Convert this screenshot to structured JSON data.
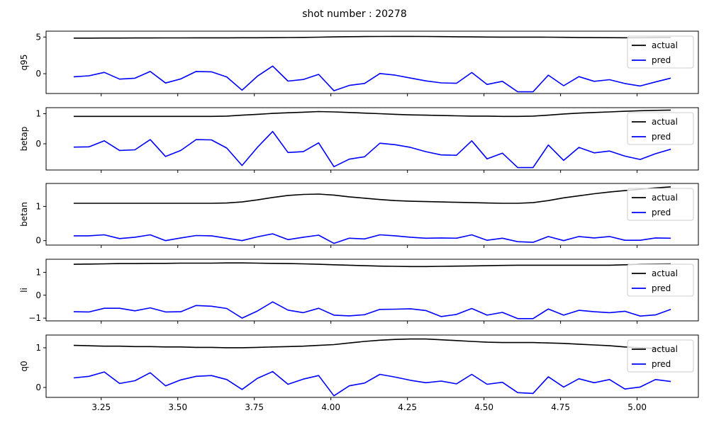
{
  "figure": {
    "title": "shot number : 20278"
  },
  "chart_data": {
    "type": "line",
    "title": "shot number : 20278",
    "x": [
      3.16,
      3.21,
      3.26,
      3.31,
      3.36,
      3.41,
      3.46,
      3.51,
      3.56,
      3.61,
      3.66,
      3.71,
      3.76,
      3.81,
      3.86,
      3.91,
      3.96,
      4.01,
      4.06,
      4.11,
      4.16,
      4.21,
      4.26,
      4.31,
      4.36,
      4.41,
      4.46,
      4.51,
      4.56,
      4.61,
      4.66,
      4.71,
      4.76,
      4.81,
      4.86,
      4.91,
      4.96,
      5.01,
      5.06,
      5.11
    ],
    "xlim": [
      3.07,
      5.2
    ],
    "xticks": [
      3.25,
      3.5,
      3.75,
      4.0,
      4.25,
      4.5,
      4.75,
      5.0
    ],
    "xtick_labels": [
      "3.25",
      "3.50",
      "3.75",
      "4.00",
      "4.25",
      "4.50",
      "4.75",
      "5.00"
    ],
    "legend": [
      "actual",
      "pred"
    ],
    "legend_position": "upper right",
    "colors": {
      "actual": "#000000",
      "pred": "#0000ff"
    },
    "subplots": [
      {
        "ylabel": "q95",
        "ylim": [
          -2.7,
          5.8
        ],
        "yticks": [
          0,
          5
        ],
        "ytick_labels": [
          "0",
          "5"
        ],
        "series": [
          {
            "name": "actual",
            "values": [
              4.85,
              4.85,
              4.86,
              4.86,
              4.87,
              4.87,
              4.88,
              4.88,
              4.89,
              4.89,
              4.89,
              4.9,
              4.9,
              4.91,
              4.93,
              4.95,
              4.98,
              5.02,
              5.05,
              5.07,
              5.08,
              5.09,
              5.09,
              5.08,
              5.06,
              5.04,
              5.02,
              5.0,
              4.99,
              4.99,
              4.99,
              4.98,
              4.96,
              4.94,
              4.92,
              4.91,
              4.9,
              4.9,
              4.92,
              4.94
            ]
          },
          {
            "name": "pred",
            "values": [
              -0.42,
              -0.29,
              0.18,
              -0.74,
              -0.61,
              0.3,
              -1.27,
              -0.71,
              0.3,
              0.26,
              -0.44,
              -2.25,
              -0.34,
              1.04,
              -1.01,
              -0.79,
              -0.09,
              -2.32,
              -1.6,
              -1.33,
              0.02,
              -0.2,
              -0.59,
              -0.98,
              -1.25,
              -1.31,
              0.16,
              -1.46,
              -1.04,
              -2.47,
              -2.47,
              -0.2,
              -1.64,
              -0.4,
              -1.04,
              -0.82,
              -1.34,
              -1.68,
              -1.13,
              -0.6
            ]
          }
        ]
      },
      {
        "ylabel": "betap",
        "ylim": [
          -0.87,
          1.2
        ],
        "yticks": [
          0,
          1
        ],
        "ytick_labels": [
          "0",
          "1"
        ],
        "series": [
          {
            "name": "actual",
            "values": [
              0.91,
              0.91,
              0.91,
              0.91,
              0.91,
              0.91,
              0.91,
              0.91,
              0.91,
              0.91,
              0.92,
              0.95,
              0.98,
              1.01,
              1.03,
              1.05,
              1.07,
              1.06,
              1.04,
              1.02,
              1.0,
              0.98,
              0.96,
              0.95,
              0.94,
              0.93,
              0.92,
              0.92,
              0.91,
              0.91,
              0.92,
              0.95,
              0.99,
              1.02,
              1.04,
              1.06,
              1.08,
              1.1,
              1.11,
              1.12
            ]
          },
          {
            "name": "pred",
            "values": [
              -0.11,
              -0.1,
              0.1,
              -0.22,
              -0.2,
              0.14,
              -0.42,
              -0.22,
              0.14,
              0.13,
              -0.14,
              -0.72,
              -0.12,
              0.41,
              -0.29,
              -0.26,
              0.03,
              -0.76,
              -0.51,
              -0.43,
              0.02,
              -0.03,
              -0.12,
              -0.26,
              -0.37,
              -0.38,
              0.1,
              -0.5,
              -0.31,
              -0.79,
              -0.79,
              -0.04,
              -0.55,
              -0.12,
              -0.3,
              -0.24,
              -0.41,
              -0.52,
              -0.33,
              -0.18
            ]
          }
        ]
      },
      {
        "ylabel": "betan",
        "ylim": [
          -0.13,
          1.67
        ],
        "yticks": [
          0,
          1
        ],
        "ytick_labels": [
          "0",
          "1"
        ],
        "series": [
          {
            "name": "actual",
            "values": [
              1.09,
              1.09,
              1.09,
              1.09,
              1.09,
              1.09,
              1.09,
              1.09,
              1.09,
              1.09,
              1.1,
              1.13,
              1.19,
              1.26,
              1.32,
              1.35,
              1.36,
              1.33,
              1.28,
              1.24,
              1.2,
              1.17,
              1.15,
              1.14,
              1.13,
              1.12,
              1.11,
              1.1,
              1.09,
              1.09,
              1.11,
              1.17,
              1.25,
              1.31,
              1.37,
              1.42,
              1.46,
              1.5,
              1.54,
              1.57
            ]
          },
          {
            "name": "pred",
            "values": [
              0.14,
              0.14,
              0.17,
              0.06,
              0.1,
              0.17,
              0.0,
              0.08,
              0.15,
              0.14,
              0.07,
              0.0,
              0.11,
              0.2,
              0.03,
              0.1,
              0.16,
              -0.08,
              0.07,
              0.05,
              0.17,
              0.14,
              0.1,
              0.07,
              0.08,
              0.07,
              0.17,
              0.01,
              0.07,
              -0.03,
              -0.05,
              0.12,
              0.0,
              0.12,
              0.08,
              0.12,
              0.01,
              0.01,
              0.08,
              0.07
            ]
          }
        ]
      },
      {
        "ylabel": "li",
        "ylim": [
          -1.12,
          1.57
        ],
        "yticks": [
          -1,
          0,
          1
        ],
        "ytick_labels": [
          "−1",
          "0",
          "1"
        ],
        "series": [
          {
            "name": "actual",
            "values": [
              1.35,
              1.36,
              1.37,
              1.38,
              1.38,
              1.39,
              1.39,
              1.4,
              1.4,
              1.4,
              1.41,
              1.41,
              1.4,
              1.39,
              1.38,
              1.37,
              1.35,
              1.33,
              1.31,
              1.29,
              1.27,
              1.26,
              1.25,
              1.25,
              1.26,
              1.27,
              1.28,
              1.29,
              1.3,
              1.31,
              1.31,
              1.31,
              1.31,
              1.31,
              1.31,
              1.31,
              1.33,
              1.35,
              1.36,
              1.37
            ]
          },
          {
            "name": "pred",
            "values": [
              -0.72,
              -0.73,
              -0.57,
              -0.57,
              -0.68,
              -0.55,
              -0.73,
              -0.72,
              -0.45,
              -0.48,
              -0.58,
              -1.0,
              -0.69,
              -0.29,
              -0.65,
              -0.76,
              -0.57,
              -0.87,
              -0.9,
              -0.85,
              -0.62,
              -0.61,
              -0.59,
              -0.67,
              -0.93,
              -0.84,
              -0.58,
              -0.87,
              -0.75,
              -1.02,
              -1.02,
              -0.6,
              -0.87,
              -0.66,
              -0.72,
              -0.76,
              -0.7,
              -0.91,
              -0.86,
              -0.62
            ]
          }
        ]
      },
      {
        "ylabel": "q0",
        "ylim": [
          -0.25,
          1.32
        ],
        "yticks": [
          0,
          1
        ],
        "ytick_labels": [
          "0",
          "1"
        ],
        "series": [
          {
            "name": "actual",
            "values": [
              1.06,
              1.05,
              1.04,
              1.04,
              1.03,
              1.03,
              1.02,
              1.02,
              1.01,
              1.01,
              1.0,
              1.0,
              1.01,
              1.02,
              1.03,
              1.04,
              1.06,
              1.08,
              1.12,
              1.16,
              1.19,
              1.21,
              1.22,
              1.22,
              1.2,
              1.18,
              1.16,
              1.14,
              1.13,
              1.13,
              1.13,
              1.12,
              1.11,
              1.09,
              1.07,
              1.05,
              1.02,
              1.0,
              0.98,
              0.96
            ]
          },
          {
            "name": "pred",
            "values": [
              0.24,
              0.28,
              0.39,
              0.1,
              0.17,
              0.37,
              0.04,
              0.19,
              0.28,
              0.3,
              0.2,
              -0.05,
              0.23,
              0.4,
              0.08,
              0.21,
              0.3,
              -0.21,
              0.04,
              0.11,
              0.33,
              0.26,
              0.18,
              0.12,
              0.16,
              0.09,
              0.33,
              0.08,
              0.13,
              -0.13,
              -0.15,
              0.27,
              0.01,
              0.22,
              0.12,
              0.2,
              -0.04,
              0.01,
              0.2,
              0.15
            ]
          }
        ]
      }
    ]
  }
}
